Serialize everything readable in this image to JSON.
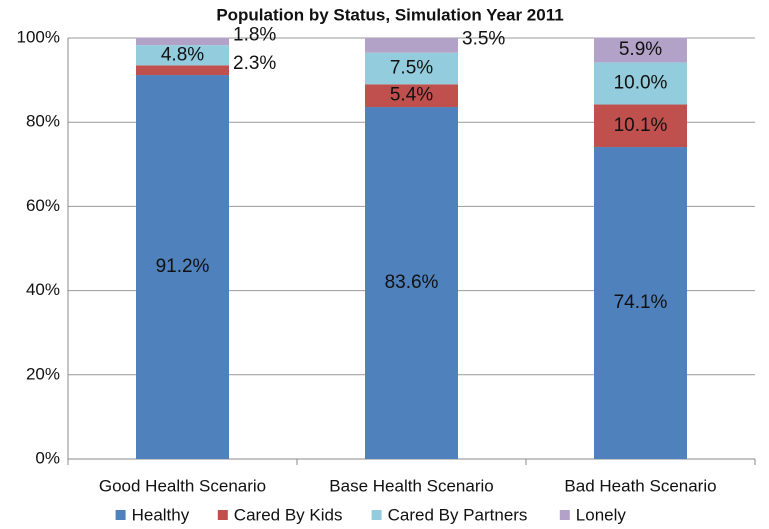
{
  "chart_data": {
    "type": "stacked_bar",
    "title": "Population by Status, Simulation Year 2011",
    "categories": [
      "Good Health Scenario",
      "Base Health Scenario",
      "Bad Heath Scenario"
    ],
    "series": [
      {
        "name": "Healthy",
        "color": "#4f81bd",
        "values": [
          91.2,
          83.6,
          74.1
        ],
        "value_labels": [
          "91.2%",
          "83.6%",
          "74.1%"
        ]
      },
      {
        "name": "Cared By Kids",
        "color": "#c0504d",
        "values": [
          2.3,
          5.4,
          10.1
        ],
        "value_labels": [
          "2.3%",
          "5.4%",
          "10.1%"
        ]
      },
      {
        "name": "Cared By Partners",
        "color": "#93cddd",
        "values": [
          4.8,
          7.5,
          10.0
        ],
        "value_labels": [
          "4.8%",
          "7.5%",
          "10.0%"
        ]
      },
      {
        "name": "Lonely",
        "color": "#b3a2c7",
        "values": [
          1.8,
          3.5,
          5.9
        ],
        "value_labels": [
          "1.8%",
          "3.5%",
          "5.9%"
        ]
      }
    ],
    "ylim": [
      0,
      100
    ],
    "yticks": [
      {
        "value": 0,
        "label": "0%"
      },
      {
        "value": 20,
        "label": "20%"
      },
      {
        "value": 40,
        "label": "40%"
      },
      {
        "value": 60,
        "label": "60%"
      },
      {
        "value": 80,
        "label": "80%"
      },
      {
        "value": 100,
        "label": "100%"
      }
    ],
    "grid": true,
    "legend": "bottom"
  }
}
